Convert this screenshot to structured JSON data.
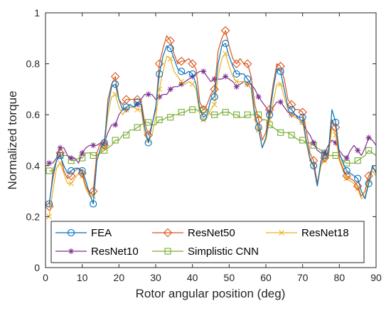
{
  "chart_data": {
    "type": "line",
    "title": "",
    "xlabel": "Rotor angular position (deg)",
    "ylabel": "Normalized torque",
    "xlim": [
      0,
      90
    ],
    "ylim": [
      0,
      1
    ],
    "xticks": [
      0,
      10,
      20,
      30,
      40,
      50,
      60,
      70,
      80,
      90
    ],
    "yticks": [
      0,
      0.2,
      0.4,
      0.6,
      0.8,
      1
    ],
    "grid": false,
    "legend_position": "bottom",
    "series": [
      {
        "name": "FEA",
        "color": "#0072BD",
        "marker": "circle",
        "marker_x": [
          1,
          4,
          7,
          10,
          13,
          16,
          19,
          22,
          25,
          28,
          31,
          34,
          37,
          40,
          43,
          46,
          49,
          52,
          55,
          58,
          61,
          64,
          67,
          70,
          73,
          76,
          79,
          82,
          85,
          88
        ],
        "x": [
          1,
          2,
          3,
          4,
          5,
          6,
          7,
          8,
          9,
          10,
          11,
          12,
          13,
          14,
          15,
          16,
          17,
          18,
          19,
          20,
          21,
          22,
          23,
          24,
          25,
          26,
          27,
          28,
          29,
          30,
          31,
          32,
          33,
          34,
          35,
          36,
          37,
          38,
          39,
          40,
          41,
          42,
          43,
          44,
          45,
          46,
          47,
          48,
          49,
          50,
          51,
          52,
          53,
          54,
          55,
          56,
          57,
          58,
          59,
          60,
          61,
          62,
          63,
          64,
          65,
          66,
          67,
          68,
          69,
          70,
          71,
          72,
          73,
          74,
          75,
          76,
          77,
          78,
          79,
          80,
          81,
          82,
          83,
          84,
          85,
          86,
          87,
          88,
          89,
          90
        ],
        "values": [
          0.25,
          0.35,
          0.42,
          0.44,
          0.4,
          0.37,
          0.38,
          0.39,
          0.39,
          0.38,
          0.34,
          0.29,
          0.25,
          0.42,
          0.47,
          0.49,
          0.63,
          0.71,
          0.72,
          0.66,
          0.62,
          0.63,
          0.64,
          0.63,
          0.65,
          0.64,
          0.55,
          0.49,
          0.56,
          0.63,
          0.76,
          0.83,
          0.87,
          0.86,
          0.82,
          0.78,
          0.77,
          0.76,
          0.77,
          0.76,
          0.72,
          0.62,
          0.59,
          0.6,
          0.66,
          0.67,
          0.8,
          0.87,
          0.88,
          0.83,
          0.79,
          0.76,
          0.76,
          0.76,
          0.74,
          0.72,
          0.6,
          0.55,
          0.47,
          0.51,
          0.6,
          0.7,
          0.78,
          0.77,
          0.7,
          0.63,
          0.62,
          0.6,
          0.59,
          0.59,
          0.5,
          0.43,
          0.4,
          0.32,
          0.42,
          0.44,
          0.45,
          0.62,
          0.57,
          0.45,
          0.41,
          0.38,
          0.37,
          0.36,
          0.35,
          0.3,
          0.27,
          0.33,
          0.4,
          0.37
        ]
      },
      {
        "name": "ResNet50",
        "color": "#D95319",
        "marker": "diamond",
        "marker_x": [
          1,
          4,
          7,
          10,
          13,
          16,
          19,
          22,
          25,
          28,
          31,
          34,
          37,
          40,
          43,
          46,
          49,
          52,
          55,
          58,
          61,
          64,
          67,
          70,
          73,
          76,
          79,
          82,
          85,
          88
        ],
        "x": [
          1,
          2,
          3,
          4,
          5,
          6,
          7,
          8,
          9,
          10,
          11,
          12,
          13,
          14,
          15,
          16,
          17,
          18,
          19,
          20,
          21,
          22,
          23,
          24,
          25,
          26,
          27,
          28,
          29,
          30,
          31,
          32,
          33,
          34,
          35,
          36,
          37,
          38,
          39,
          40,
          41,
          42,
          43,
          44,
          45,
          46,
          47,
          48,
          49,
          50,
          51,
          52,
          53,
          54,
          55,
          56,
          57,
          58,
          59,
          60,
          61,
          62,
          63,
          64,
          65,
          66,
          67,
          68,
          69,
          70,
          71,
          72,
          73,
          74,
          75,
          76,
          77,
          78,
          79,
          80,
          81,
          82,
          83,
          84,
          85,
          86,
          87,
          88,
          89,
          90
        ],
        "values": [
          0.24,
          0.37,
          0.42,
          0.45,
          0.38,
          0.35,
          0.36,
          0.38,
          0.39,
          0.37,
          0.32,
          0.29,
          0.3,
          0.45,
          0.49,
          0.48,
          0.66,
          0.72,
          0.75,
          0.66,
          0.64,
          0.66,
          0.66,
          0.66,
          0.66,
          0.66,
          0.57,
          0.52,
          0.56,
          0.62,
          0.8,
          0.86,
          0.91,
          0.89,
          0.84,
          0.8,
          0.81,
          0.81,
          0.82,
          0.8,
          0.78,
          0.65,
          0.62,
          0.64,
          0.68,
          0.7,
          0.85,
          0.9,
          0.93,
          0.87,
          0.82,
          0.8,
          0.82,
          0.8,
          0.8,
          0.75,
          0.64,
          0.58,
          0.5,
          0.53,
          0.62,
          0.72,
          0.8,
          0.79,
          0.74,
          0.66,
          0.64,
          0.62,
          0.62,
          0.61,
          0.54,
          0.45,
          0.42,
          0.33,
          0.41,
          0.43,
          0.44,
          0.58,
          0.55,
          0.43,
          0.39,
          0.36,
          0.35,
          0.34,
          0.32,
          0.28,
          0.3,
          0.36,
          0.39,
          0.38
        ]
      },
      {
        "name": "ResNet18",
        "color": "#EDB120",
        "marker": "x",
        "marker_x": [
          1,
          4,
          7,
          10,
          13,
          16,
          19,
          22,
          25,
          28,
          31,
          34,
          37,
          40,
          43,
          46,
          49,
          52,
          55,
          58,
          61,
          64,
          67,
          70,
          73,
          76,
          79,
          82,
          85,
          88
        ],
        "x": [
          1,
          2,
          3,
          4,
          5,
          6,
          7,
          8,
          9,
          10,
          11,
          12,
          13,
          14,
          15,
          16,
          17,
          18,
          19,
          20,
          21,
          22,
          23,
          24,
          25,
          26,
          27,
          28,
          29,
          30,
          31,
          32,
          33,
          34,
          35,
          36,
          37,
          38,
          39,
          40,
          41,
          42,
          43,
          44,
          45,
          46,
          47,
          48,
          49,
          50,
          51,
          52,
          53,
          54,
          55,
          56,
          57,
          58,
          59,
          60,
          61,
          62,
          63,
          64,
          65,
          66,
          67,
          68,
          69,
          70,
          71,
          72,
          73,
          74,
          75,
          76,
          77,
          78,
          79,
          80,
          81,
          82,
          83,
          84,
          85,
          86,
          87,
          88,
          89,
          90
        ],
        "values": [
          0.2,
          0.3,
          0.39,
          0.41,
          0.37,
          0.33,
          0.33,
          0.35,
          0.37,
          0.36,
          0.31,
          0.28,
          0.28,
          0.42,
          0.46,
          0.47,
          0.6,
          0.67,
          0.68,
          0.63,
          0.6,
          0.62,
          0.63,
          0.63,
          0.62,
          0.62,
          0.53,
          0.5,
          0.52,
          0.59,
          0.7,
          0.77,
          0.83,
          0.82,
          0.77,
          0.75,
          0.73,
          0.72,
          0.73,
          0.72,
          0.7,
          0.6,
          0.58,
          0.59,
          0.62,
          0.64,
          0.75,
          0.82,
          0.84,
          0.79,
          0.75,
          0.73,
          0.73,
          0.73,
          0.72,
          0.7,
          0.58,
          0.54,
          0.47,
          0.5,
          0.58,
          0.65,
          0.72,
          0.72,
          0.67,
          0.62,
          0.6,
          0.59,
          0.58,
          0.57,
          0.49,
          0.42,
          0.4,
          0.32,
          0.4,
          0.42,
          0.43,
          0.55,
          0.52,
          0.42,
          0.38,
          0.35,
          0.34,
          0.33,
          0.31,
          0.27,
          0.28,
          0.34,
          0.38,
          0.36
        ]
      },
      {
        "name": "ResNet10",
        "color": "#7E2F8E",
        "marker": "asterisk",
        "marker_x": [
          1,
          4,
          7,
          10,
          13,
          16,
          19,
          22,
          25,
          28,
          31,
          34,
          37,
          40,
          43,
          46,
          49,
          52,
          55,
          58,
          61,
          64,
          67,
          70,
          73,
          76,
          79,
          82,
          85,
          88
        ],
        "x": [
          1,
          2,
          3,
          4,
          5,
          6,
          7,
          8,
          9,
          10,
          11,
          12,
          13,
          14,
          15,
          16,
          17,
          18,
          19,
          20,
          21,
          22,
          23,
          24,
          25,
          26,
          27,
          28,
          29,
          30,
          31,
          32,
          33,
          34,
          35,
          36,
          37,
          38,
          39,
          40,
          41,
          42,
          43,
          44,
          45,
          46,
          47,
          48,
          49,
          50,
          51,
          52,
          53,
          54,
          55,
          56,
          57,
          58,
          59,
          60,
          61,
          62,
          63,
          64,
          65,
          66,
          67,
          68,
          69,
          70,
          71,
          72,
          73,
          74,
          75,
          76,
          77,
          78,
          79,
          80,
          81,
          82,
          83,
          84,
          85,
          86,
          87,
          88,
          89,
          90
        ],
        "values": [
          0.41,
          0.41,
          0.43,
          0.47,
          0.47,
          0.44,
          0.43,
          0.43,
          0.41,
          0.45,
          0.47,
          0.48,
          0.48,
          0.48,
          0.49,
          0.49,
          0.53,
          0.56,
          0.56,
          0.6,
          0.62,
          0.62,
          0.63,
          0.63,
          0.64,
          0.66,
          0.68,
          0.68,
          0.68,
          0.66,
          0.67,
          0.68,
          0.68,
          0.7,
          0.71,
          0.71,
          0.72,
          0.73,
          0.74,
          0.75,
          0.76,
          0.77,
          0.77,
          0.75,
          0.73,
          0.74,
          0.74,
          0.74,
          0.75,
          0.74,
          0.73,
          0.71,
          0.72,
          0.73,
          0.72,
          0.72,
          0.7,
          0.67,
          0.65,
          0.63,
          0.61,
          0.63,
          0.65,
          0.65,
          0.63,
          0.61,
          0.6,
          0.6,
          0.58,
          0.57,
          0.54,
          0.52,
          0.49,
          0.46,
          0.45,
          0.45,
          0.48,
          0.5,
          0.49,
          0.46,
          0.44,
          0.43,
          0.46,
          0.48,
          0.46,
          0.44,
          0.47,
          0.51,
          0.5,
          0.48
        ]
      },
      {
        "name": "Simplistic CNN",
        "color": "#77AC30",
        "marker": "square",
        "marker_x": [
          1,
          4,
          7,
          10,
          13,
          16,
          19,
          22,
          25,
          28,
          31,
          34,
          37,
          40,
          43,
          46,
          49,
          52,
          55,
          58,
          61,
          64,
          67,
          70,
          73,
          76,
          79,
          82,
          85,
          88
        ],
        "x": [
          1,
          2,
          3,
          4,
          5,
          6,
          7,
          8,
          9,
          10,
          11,
          12,
          13,
          14,
          15,
          16,
          17,
          18,
          19,
          20,
          21,
          22,
          23,
          24,
          25,
          26,
          27,
          28,
          29,
          30,
          31,
          32,
          33,
          34,
          35,
          36,
          37,
          38,
          39,
          40,
          41,
          42,
          43,
          44,
          45,
          46,
          47,
          48,
          49,
          50,
          51,
          52,
          53,
          54,
          55,
          56,
          57,
          58,
          59,
          60,
          61,
          62,
          63,
          64,
          65,
          66,
          67,
          68,
          69,
          70,
          71,
          72,
          73,
          74,
          75,
          76,
          77,
          78,
          79,
          80,
          81,
          82,
          83,
          84,
          85,
          86,
          87,
          88,
          89,
          90
        ],
        "values": [
          0.38,
          0.38,
          0.42,
          0.44,
          0.44,
          0.44,
          0.42,
          0.42,
          0.43,
          0.43,
          0.45,
          0.45,
          0.44,
          0.44,
          0.45,
          0.46,
          0.47,
          0.48,
          0.5,
          0.5,
          0.52,
          0.52,
          0.54,
          0.54,
          0.55,
          0.56,
          0.57,
          0.57,
          0.56,
          0.56,
          0.58,
          0.58,
          0.59,
          0.59,
          0.6,
          0.6,
          0.61,
          0.61,
          0.62,
          0.62,
          0.62,
          0.61,
          0.62,
          0.62,
          0.6,
          0.6,
          0.6,
          0.61,
          0.61,
          0.61,
          0.6,
          0.6,
          0.59,
          0.59,
          0.6,
          0.6,
          0.6,
          0.6,
          0.58,
          0.58,
          0.56,
          0.55,
          0.54,
          0.53,
          0.53,
          0.53,
          0.52,
          0.51,
          0.5,
          0.5,
          0.49,
          0.49,
          0.48,
          0.47,
          0.46,
          0.45,
          0.44,
          0.44,
          0.44,
          0.44,
          0.42,
          0.41,
          0.41,
          0.41,
          0.42,
          0.43,
          0.44,
          0.46,
          0.45,
          0.44
        ]
      }
    ]
  }
}
